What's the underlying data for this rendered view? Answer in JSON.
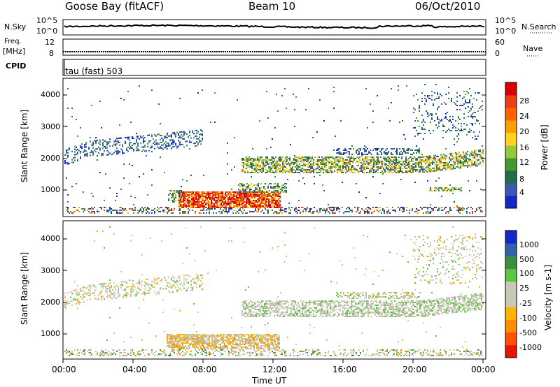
{
  "header": {
    "station": "Goose Bay (fitACF)",
    "beam": "Beam 10",
    "date": "06/Oct/2010"
  },
  "top_panels": {
    "nsky_label": "N.Sky",
    "nsky_ticks": [
      "10^5",
      "10^0"
    ],
    "nsearch_label": "N.Search",
    "nsearch_ticks": [
      "10^5",
      "10^0"
    ],
    "freq_label_1": "Freq.",
    "freq_label_2": "[MHz]",
    "freq_ticks": [
      "12",
      "8"
    ],
    "nave_label": "Nave",
    "nave_ticks": [
      "60",
      "0"
    ],
    "cpid_label": "CPID",
    "cpid_value": "tau (fast) 503"
  },
  "chart_data": [
    {
      "type": "heatmap",
      "name": "power-panel",
      "ylabel": "Slant Range [km]",
      "ylim": [
        180,
        4500
      ],
      "y_ticks": [
        "1000",
        "2000",
        "3000",
        "4000"
      ],
      "colorbar": {
        "label": "Power [dB]",
        "ticks": [
          "4",
          "8",
          "12",
          "16",
          "20",
          "24",
          "28"
        ],
        "colors": [
          "#1428c8",
          "#3c5ab4",
          "#1e6e46",
          "#469632",
          "#96c83c",
          "#ffd21e",
          "#ffa000",
          "#ff6400",
          "#f03c14",
          "#dc0000"
        ]
      }
    },
    {
      "type": "heatmap",
      "name": "velocity-panel",
      "ylabel": "Slant Range [km]",
      "ylim": [
        180,
        4500
      ],
      "y_ticks": [
        "1000",
        "2000",
        "3000",
        "4000"
      ],
      "colorbar": {
        "label": "Velocity [m s-1]",
        "ticks": [
          "1000",
          "500",
          "100",
          "25",
          "-25",
          "-100",
          "-500",
          "-1000"
        ],
        "colors": [
          "#1428c8",
          "#2d64aa",
          "#3c8c46",
          "#5ac83c",
          "#c8c8b4",
          "#c8c8b4",
          "#ffb400",
          "#ff8c00",
          "#ff5000",
          "#e61400"
        ]
      }
    }
  ],
  "time_axis": {
    "label": "Time UT",
    "ticks": [
      "00:00",
      "04:00",
      "08:00",
      "12:00",
      "16:00",
      "20:00",
      "00:00"
    ]
  }
}
